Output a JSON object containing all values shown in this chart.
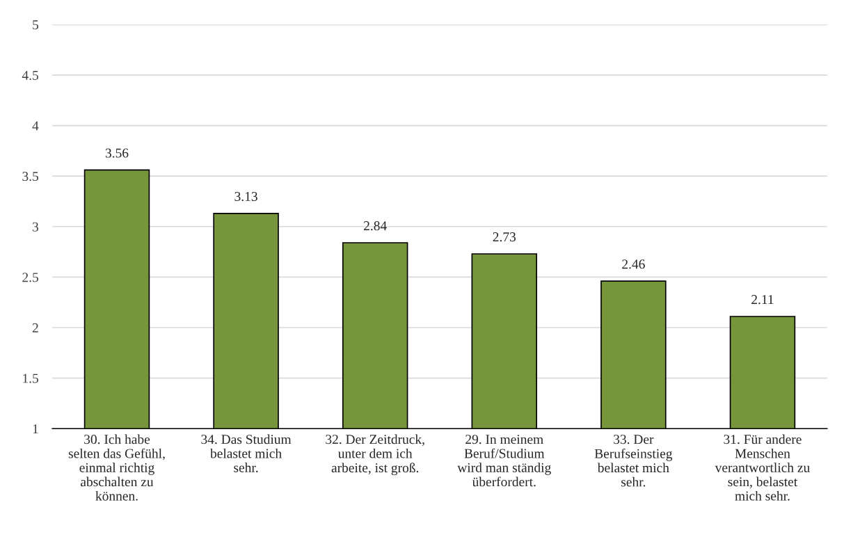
{
  "chart_data": {
    "type": "bar",
    "categories": [
      "30. Ich habe\nselten das Gefühl,\neinmal richtig\nabschalten zu\nkönnen.",
      "34. Das Studium\nbelastet mich\nsehr.",
      "32. Der Zeitdruck,\nunter dem ich\narbeite, ist groß.",
      "29. In meinem\nBeruf/Studium\nwird man ständig\nüberfordert.",
      "33. Der\nBerufseinstieg\nbelastet mich\nsehr.",
      "31. Für andere\nMenschen\nverantwortlich zu\nsein, belastet\nmich sehr."
    ],
    "values": [
      3.56,
      3.13,
      2.84,
      2.73,
      2.46,
      2.11
    ],
    "color": "#77963c",
    "ylim": [
      1,
      5
    ],
    "yticks": [
      1,
      1.5,
      2,
      2.5,
      3,
      3.5,
      4,
      4.5,
      5
    ],
    "grid": "y",
    "data_labels": true
  }
}
